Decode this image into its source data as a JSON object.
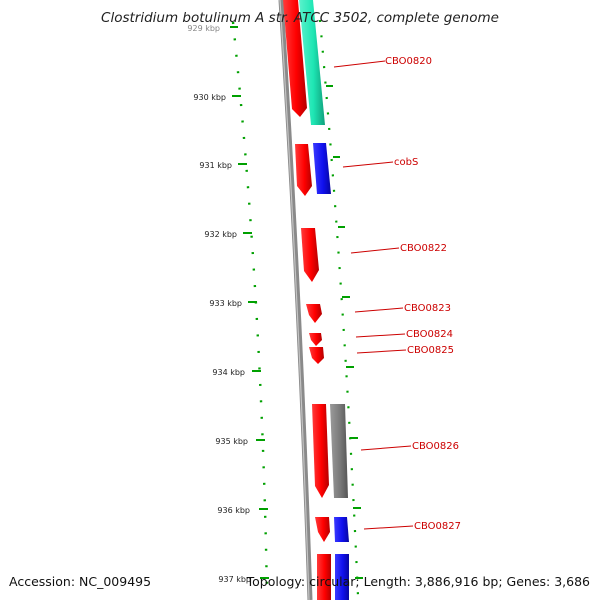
{
  "map": {
    "title": "Clostridium botulinum A str. ATCC 3502, complete genome",
    "accession_text": "Accession: NC_009495",
    "stats_text": "Topology: circular; Length: 3,886,916 bp; Genes: 3,686",
    "colors": {
      "backbone": "#8a8a8a",
      "tick": "#00a000",
      "gene_label": "#cc0000",
      "strand_forward": "#ff0000",
      "cog_teal": "#1ee6b4",
      "cog_blue": "#1010ee",
      "cog_gray": "#7a7a7a"
    },
    "kbp_ticks": [
      {
        "label": "929 kbp",
        "value": 929
      },
      {
        "label": "930 kbp",
        "value": 930
      },
      {
        "label": "931 kbp",
        "value": 931
      },
      {
        "label": "932 kbp",
        "value": 932
      },
      {
        "label": "933 kbp",
        "value": 933
      },
      {
        "label": "934 kbp",
        "value": 934
      },
      {
        "label": "935 kbp",
        "value": 935
      },
      {
        "label": "936 kbp",
        "value": 936
      },
      {
        "label": "937 kbp",
        "value": 937
      }
    ],
    "genes": [
      {
        "label": "CBO0820",
        "cog_color": "cog_teal"
      },
      {
        "label": "cobS",
        "cog_color": "cog_blue"
      },
      {
        "label": "CBO0822",
        "cog_color": ""
      },
      {
        "label": "CBO0823",
        "cog_color": ""
      },
      {
        "label": "CBO0824",
        "cog_color": ""
      },
      {
        "label": "CBO0825",
        "cog_color": ""
      },
      {
        "label": "CBO0826",
        "cog_color": "cog_gray"
      },
      {
        "label": "CBO0827",
        "cog_color": "cog_blue"
      }
    ]
  }
}
